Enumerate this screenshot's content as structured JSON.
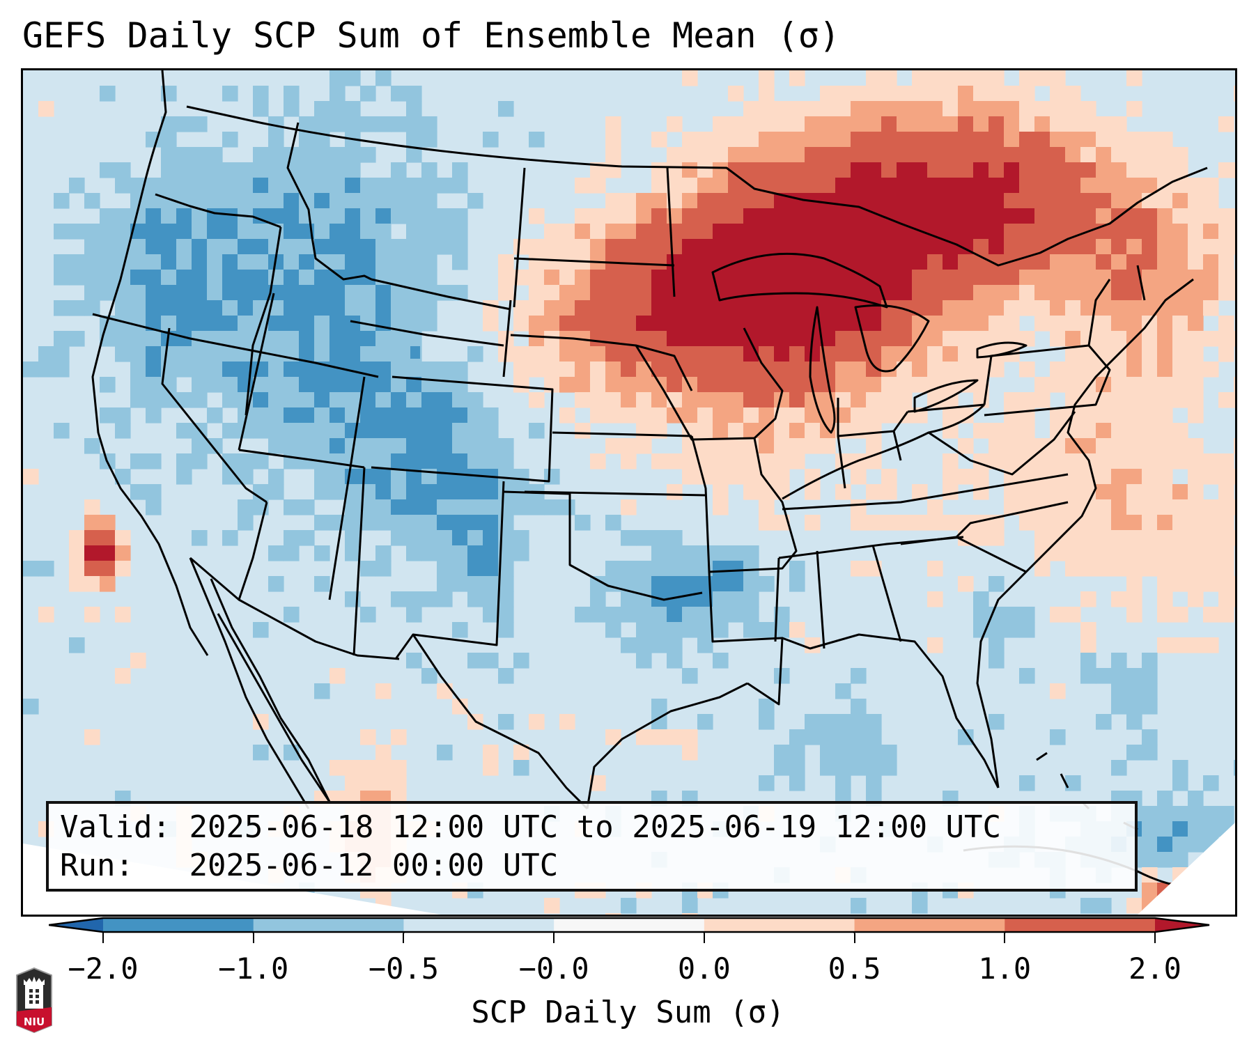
{
  "title": "GEFS Daily SCP Sum of Ensemble Mean (σ)",
  "info": {
    "valid_label": "Valid:",
    "valid_value": "2025-06-18 12:00 UTC to 2025-06-19 12:00 UTC",
    "run_label": "Run:  ",
    "run_value": "2025-06-12 00:00 UTC"
  },
  "colorbar": {
    "label": "SCP Daily Sum (σ)",
    "ticks": [
      "−2.0",
      "−1.0",
      "−0.5",
      "−0.0",
      "0.0",
      "0.5",
      "1.0",
      "2.0"
    ],
    "bins": [
      {
        "range": "< -2.0",
        "color": "#2166ac"
      },
      {
        "range": "-2.0 to -1.0",
        "color": "#4393c3"
      },
      {
        "range": "-1.0 to -0.5",
        "color": "#92c5de"
      },
      {
        "range": "-0.5 to -0.0",
        "color": "#d1e5f0"
      },
      {
        "range": "-0.0 to 0.0",
        "color": "#f7f7f7"
      },
      {
        "range": "0.0 to 0.5",
        "color": "#fddbc7"
      },
      {
        "range": "0.5 to 1.0",
        "color": "#f4a582"
      },
      {
        "range": "1.0 to 2.0",
        "color": "#d6604d"
      },
      {
        "range": "> 2.0",
        "color": "#b2182b"
      }
    ],
    "extend": "both"
  },
  "map": {
    "region": "Contiguous United States",
    "projection": "Lambert Conformal",
    "field": "SCP daily sum anomaly",
    "units": "σ",
    "highlights": [
      {
        "area": "Upper Midwest / Great Lakes",
        "category": "> 2.0"
      },
      {
        "area": "Southern Ontario / Quebec",
        "category": "1.0 to 2.0"
      },
      {
        "area": "Northern Plains",
        "category": "0.0 to 0.5"
      },
      {
        "area": "Intermountain West / Rockies",
        "category": "-1.0 to -0.5"
      },
      {
        "area": "Southeast US",
        "category": "-0.5 to -0.0"
      },
      {
        "area": "Offshore Southern California",
        "category": "> 2.0"
      }
    ]
  },
  "logo": {
    "text": "NIU",
    "name": "Northern Illinois University"
  }
}
